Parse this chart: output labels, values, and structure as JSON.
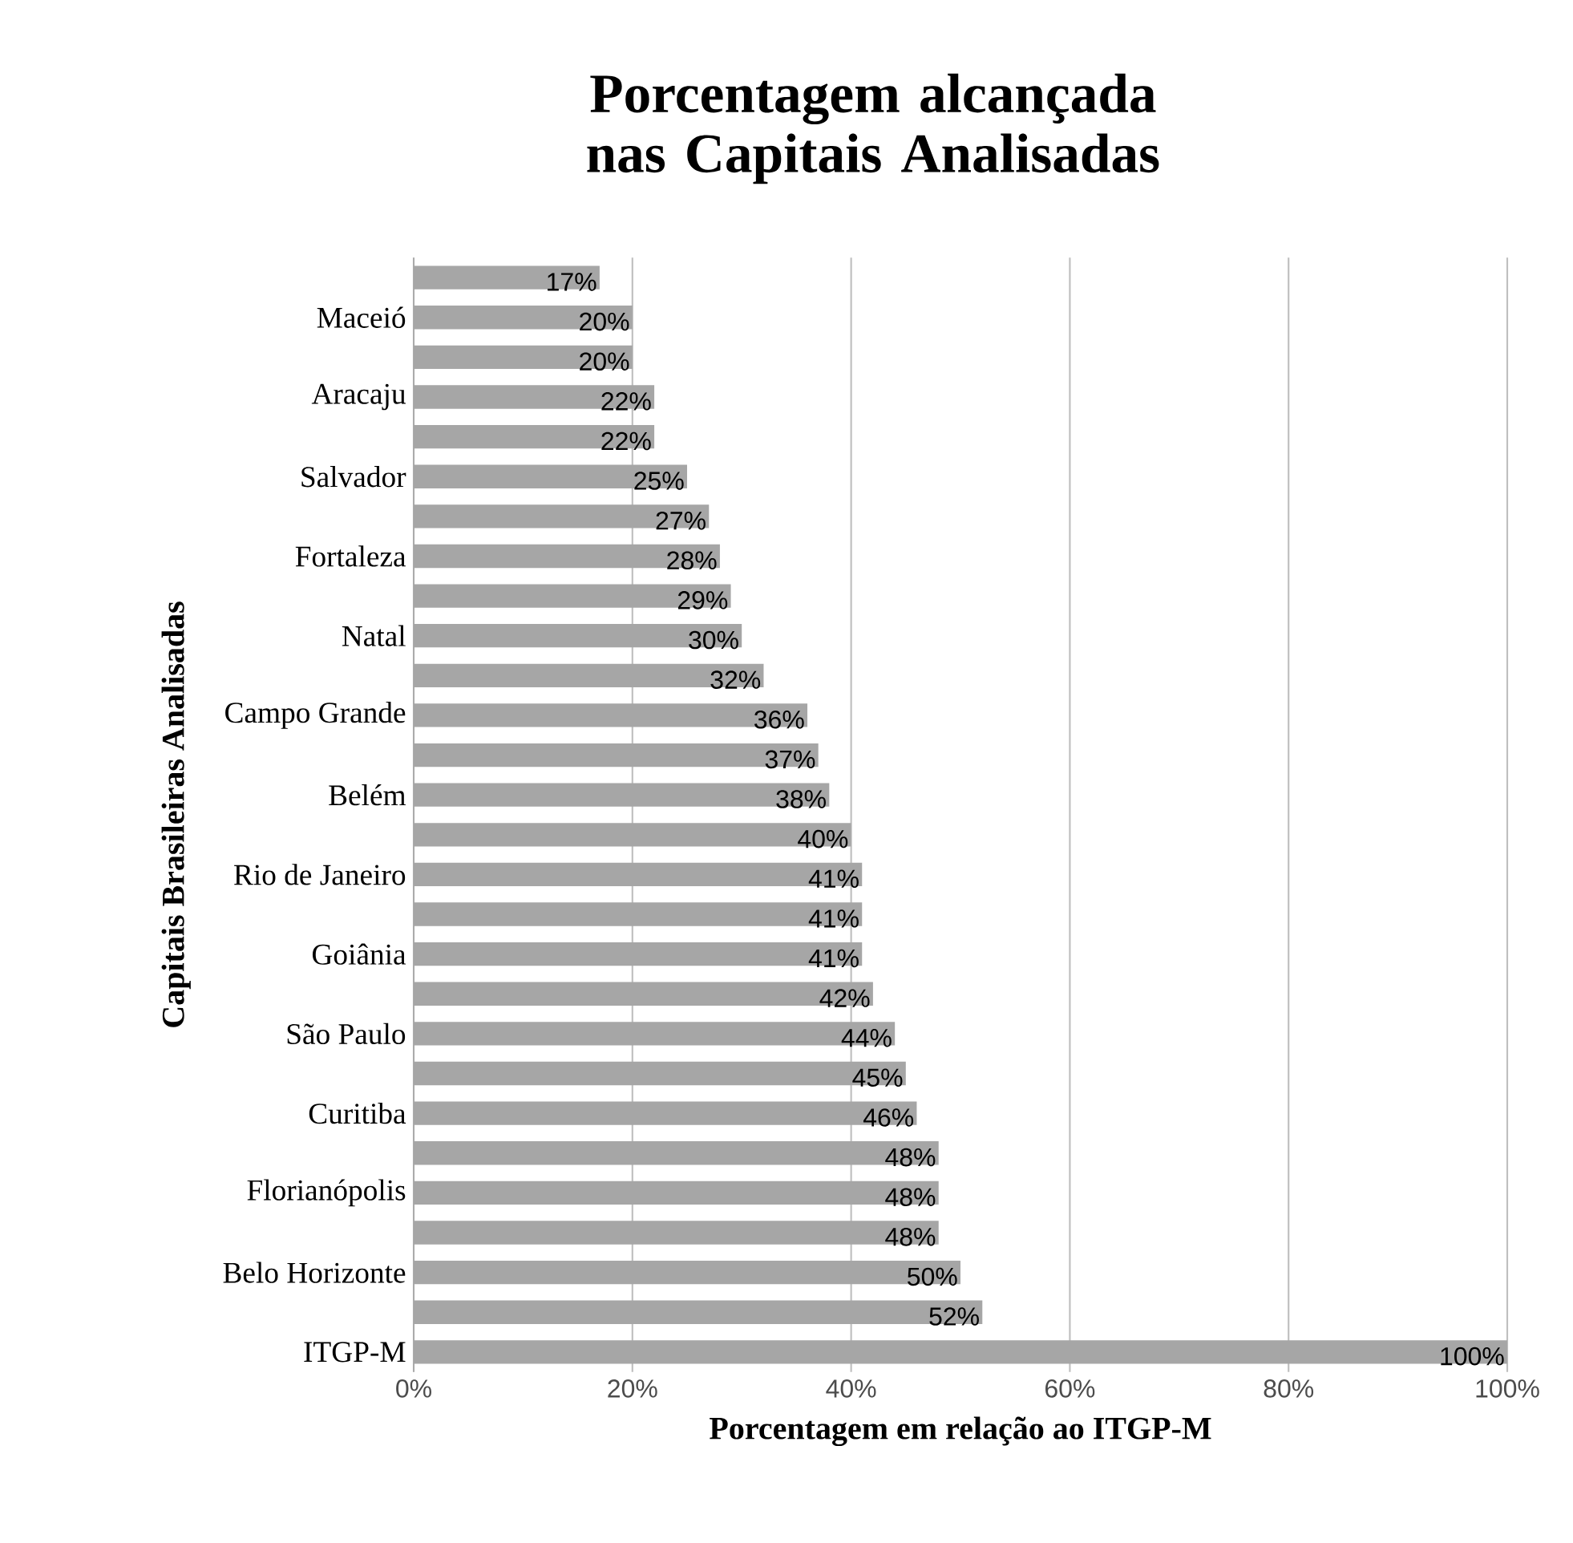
{
  "chart_data": {
    "type": "bar",
    "orientation": "horizontal",
    "title": "Porcentagem alcançada nas Capitais Analisadas",
    "xlabel": "Porcentagem em relação ao ITGP-M",
    "ylabel": "Capitais  Brasileiras Analisadas",
    "categories": [
      null,
      "Maceió",
      null,
      "Aracaju",
      null,
      "Salvador",
      null,
      "Fortaleza",
      null,
      "Natal",
      null,
      "Campo Grande",
      null,
      "Belém",
      null,
      "Rio de Janeiro",
      null,
      "Goiânia",
      null,
      "São Paulo",
      null,
      "Curitiba",
      null,
      "Florianópolis",
      null,
      "Belo Horizonte",
      null,
      "ITGP-M"
    ],
    "values": [
      17,
      20,
      20,
      22,
      22,
      25,
      27,
      28,
      29,
      30,
      32,
      36,
      37,
      38,
      40,
      41,
      41,
      41,
      42,
      44,
      45,
      46,
      48,
      48,
      48,
      50,
      52,
      100
    ],
    "value_labels": [
      "17%",
      "20%",
      "20%",
      "22%",
      "22%",
      "25%",
      "27%",
      "28%",
      "29%",
      "30%",
      "32%",
      "36%",
      "37%",
      "38%",
      "40%",
      "41%",
      "41%",
      "41%",
      "42%",
      "44%",
      "45%",
      "46%",
      "48%",
      "48%",
      "48%",
      "50%",
      "52%",
      "100%"
    ],
    "color": "#a6a6a6",
    "xlim": [
      0,
      100
    ],
    "xticks": [
      {
        "value": 0,
        "label": "0%"
      },
      {
        "value": 20,
        "label": "20%"
      },
      {
        "value": 40,
        "label": "40%"
      },
      {
        "value": 60,
        "label": "60%"
      },
      {
        "value": 80,
        "label": "80%"
      },
      {
        "value": 100,
        "label": "100%"
      }
    ],
    "grid": "x"
  }
}
